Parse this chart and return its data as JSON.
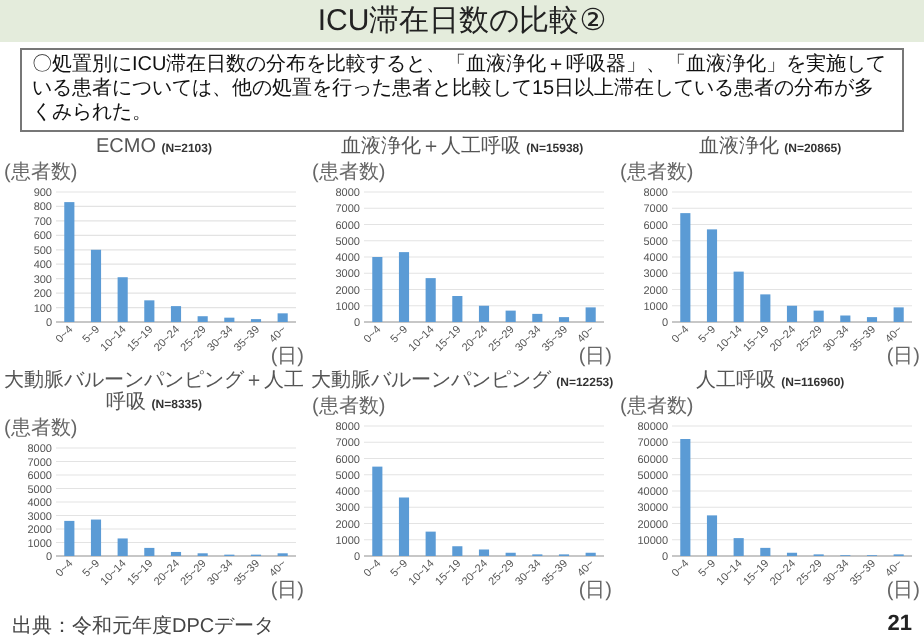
{
  "chart_data": [
    {
      "type": "bar",
      "title": "ECMO",
      "subtitle": "(N=2103)",
      "ylabel": "(患者数)",
      "xlabel": "(日)",
      "annotations": [
        "ICU滞在日数の比較②",
        "〇処置別にICU滞在日数の分布を比較すると、「血液浄化＋呼吸器」、「血液浄化」を実施している患者については、他の処置を行った患者と比較して15日以上滞在している患者の分布が多くみられた。"
      ],
      "categories": [
        "0~4",
        "5~9",
        "10~14",
        "15~19",
        "20~24",
        "25~29",
        "30~34",
        "35~39",
        "40~"
      ],
      "values": [
        830,
        500,
        310,
        150,
        110,
        40,
        30,
        20,
        60
      ],
      "color": "#5b9bd5",
      "ylim": [
        0,
        900
      ],
      "yticks": [
        0,
        100,
        200,
        300,
        400,
        500,
        600,
        700,
        800,
        900
      ],
      "grid": "y"
    },
    {
      "type": "bar",
      "title": "血液浄化＋人工呼吸",
      "subtitle": "(N=15938)",
      "ylabel": "(患者数)",
      "xlabel": "(日)",
      "categories": [
        "0~4",
        "5~9",
        "10~14",
        "15~19",
        "20~24",
        "25~29",
        "30~34",
        "35~39",
        "40~"
      ],
      "values": [
        4000,
        4300,
        2700,
        1600,
        1000,
        700,
        500,
        300,
        900
      ],
      "color": "#5b9bd5",
      "ylim": [
        0,
        8000
      ],
      "yticks": [
        0,
        1000,
        2000,
        3000,
        4000,
        5000,
        6000,
        7000,
        8000
      ],
      "grid": "y"
    },
    {
      "type": "bar",
      "title": "血液浄化",
      "subtitle": "(N=20865)",
      "ylabel": "(患者数)",
      "xlabel": "(日)",
      "categories": [
        "0~4",
        "5~9",
        "10~14",
        "15~19",
        "20~24",
        "25~29",
        "30~34",
        "35~39",
        "40~"
      ],
      "values": [
        6700,
        5700,
        3100,
        1700,
        1000,
        700,
        400,
        300,
        900
      ],
      "color": "#5b9bd5",
      "ylim": [
        0,
        8000
      ],
      "yticks": [
        0,
        1000,
        2000,
        3000,
        4000,
        5000,
        6000,
        7000,
        8000
      ],
      "grid": "y"
    },
    {
      "type": "bar",
      "title": "大動脈バルーンパンピング＋人工呼吸",
      "subtitle": "(N=8335)",
      "ylabel": "(患者数)",
      "xlabel": "(日)",
      "categories": [
        "0~4",
        "5~9",
        "10~14",
        "15~19",
        "20~24",
        "25~29",
        "30~34",
        "35~39",
        "40~"
      ],
      "values": [
        2600,
        2700,
        1300,
        600,
        300,
        200,
        100,
        100,
        200
      ],
      "color": "#5b9bd5",
      "ylim": [
        0,
        8000
      ],
      "yticks": [
        0,
        1000,
        2000,
        3000,
        4000,
        5000,
        6000,
        7000,
        8000
      ],
      "grid": "y"
    },
    {
      "type": "bar",
      "title": "大動脈バルーンパンピング",
      "subtitle": "(N=12253)",
      "ylabel": "(患者数)",
      "xlabel": "(日)",
      "categories": [
        "0~4",
        "5~9",
        "10~14",
        "15~19",
        "20~24",
        "25~29",
        "30~34",
        "35~39",
        "40~"
      ],
      "values": [
        5500,
        3600,
        1500,
        600,
        400,
        200,
        100,
        100,
        200
      ],
      "color": "#5b9bd5",
      "ylim": [
        0,
        8000
      ],
      "yticks": [
        0,
        1000,
        2000,
        3000,
        4000,
        5000,
        6000,
        7000,
        8000
      ],
      "grid": "y"
    },
    {
      "type": "bar",
      "title": "人工呼吸",
      "subtitle": "(N=116960)",
      "ylabel": "(患者数)",
      "xlabel": "(日)",
      "annotations": [
        "出典：令和元年度DPCデータ",
        "21"
      ],
      "categories": [
        "0~4",
        "5~9",
        "10~14",
        "15~19",
        "20~24",
        "25~29",
        "30~34",
        "35~39",
        "40~"
      ],
      "values": [
        72000,
        25000,
        11000,
        5000,
        2000,
        1000,
        500,
        500,
        1000
      ],
      "color": "#5b9bd5",
      "ylim": [
        0,
        80000
      ],
      "yticks": [
        0,
        10000,
        20000,
        30000,
        40000,
        50000,
        60000,
        70000,
        80000
      ],
      "grid": "y"
    }
  ]
}
